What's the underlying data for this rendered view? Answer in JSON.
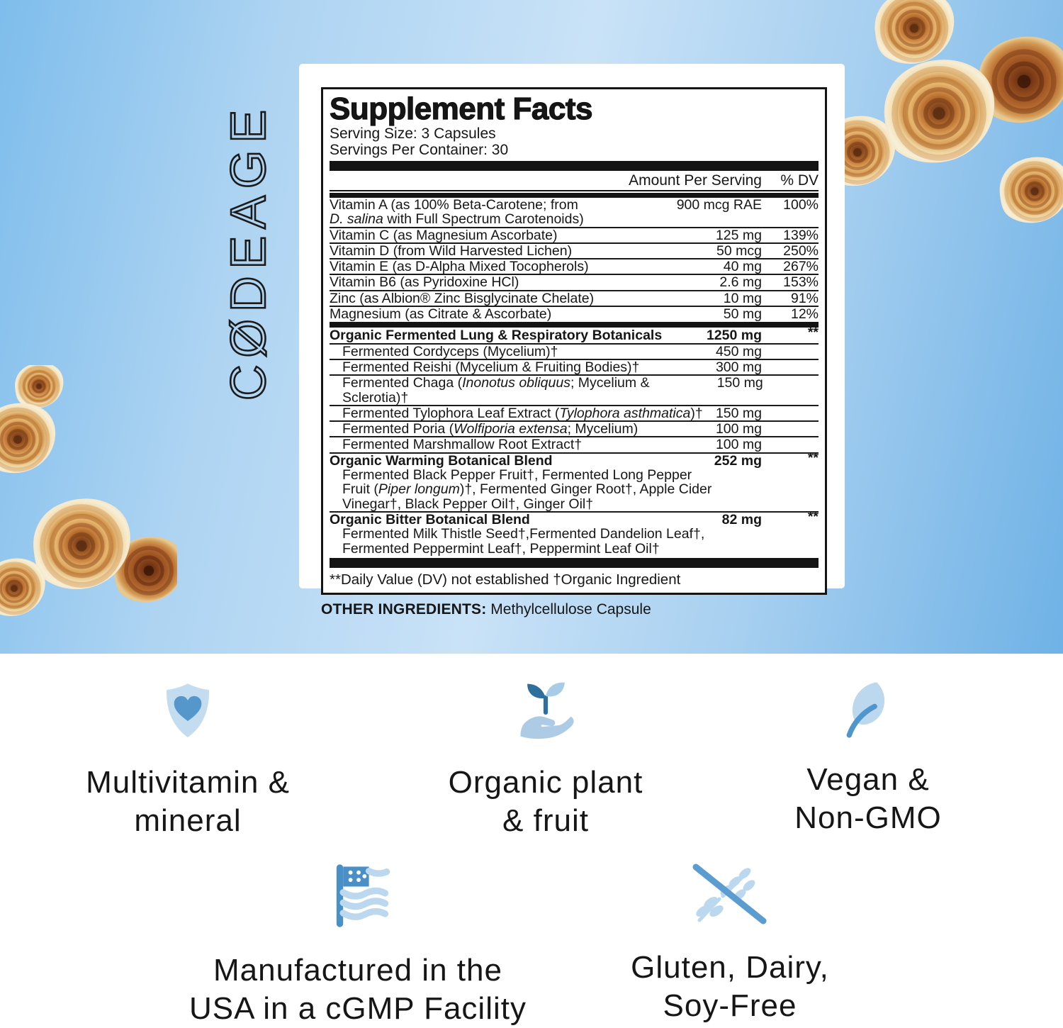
{
  "brand": {
    "logo_text": "CØDEAGE"
  },
  "supplement_facts": {
    "title": "Supplement Facts",
    "serving_size": "Serving Size: 3 Capsules",
    "servings_per_container": "Servings Per Container: 30",
    "columns": {
      "amount": "Amount Per Serving",
      "dv": "% DV"
    },
    "rows": [
      {
        "parts": [
          {
            "t": "Vitamin A (as 100% Beta-Carotene; from"
          }
        ],
        "amount": "900 mcg RAE",
        "dv": "100%"
      },
      {
        "parts": [
          {
            "t": "D. salina",
            "i": true
          },
          {
            "t": " with Full Spectrum Carotenoids)"
          }
        ],
        "rule": true
      },
      {
        "parts": [
          {
            "t": "Vitamin C (as Magnesium Ascorbate)"
          }
        ],
        "amount": "125 mg",
        "dv": "139%",
        "rule": true
      },
      {
        "parts": [
          {
            "t": "Vitamin D (from Wild Harvested Lichen)"
          }
        ],
        "amount": "50 mcg",
        "dv": "250%",
        "rule": true
      },
      {
        "parts": [
          {
            "t": "Vitamin E (as D-Alpha Mixed Tocopherols)"
          }
        ],
        "amount": "40 mg",
        "dv": "267%",
        "rule": true
      },
      {
        "parts": [
          {
            "t": "Vitamin B6 (as Pyridoxine HCl)"
          }
        ],
        "amount": "2.6 mg",
        "dv": "153%",
        "rule": true
      },
      {
        "parts": [
          {
            "t": "Zinc (as Albion® Zinc Bisglycinate Chelate)"
          }
        ],
        "amount": "10 mg",
        "dv": "91%",
        "rule": true
      },
      {
        "parts": [
          {
            "t": "Magnesium (as Citrate & Ascorbate)"
          }
        ],
        "amount": "50 mg",
        "dv": "12%",
        "bar_after": true
      },
      {
        "parts": [
          {
            "t": "Organic Fermented Lung & Respiratory Botanicals"
          }
        ],
        "amount": "1250 mg",
        "dv": "**",
        "bold": true,
        "rule": true
      },
      {
        "parts": [
          {
            "t": "Fermented Cordyceps (Mycelium)†"
          }
        ],
        "amount": "450 mg",
        "indent": 1,
        "rule": true
      },
      {
        "parts": [
          {
            "t": "Fermented Reishi (Mycelium & Fruiting Bodies)†"
          }
        ],
        "amount": "300 mg",
        "indent": 1,
        "rule": true
      },
      {
        "parts": [
          {
            "t": "Fermented Chaga ("
          },
          {
            "t": "Inonotus obliquus",
            "i": true
          },
          {
            "t": "; Mycelium & Sclerotia)†"
          }
        ],
        "amount": "150 mg",
        "indent": 1,
        "rule": true
      },
      {
        "parts": [
          {
            "t": "Fermented Tylophora Leaf Extract ("
          },
          {
            "t": "Tylophora asthmatica",
            "i": true
          },
          {
            "t": ")†"
          }
        ],
        "amount": "150 mg",
        "indent": 1,
        "rule": true
      },
      {
        "parts": [
          {
            "t": "Fermented Poria ("
          },
          {
            "t": "Wolfiporia extensa",
            "i": true
          },
          {
            "t": "; Mycelium)"
          }
        ],
        "amount": "100 mg",
        "indent": 1,
        "rule": true
      },
      {
        "parts": [
          {
            "t": "Fermented Marshmallow Root Extract†"
          }
        ],
        "amount": "100 mg",
        "indent": 1,
        "rule": true
      },
      {
        "parts": [
          {
            "t": "Organic Warming Botanical Blend"
          }
        ],
        "amount": "252 mg",
        "dv": "**",
        "bold": true
      },
      {
        "parts": [
          {
            "t": "Fermented Black Pepper Fruit†, Fermented Long Pepper"
          }
        ],
        "indent": 1
      },
      {
        "parts": [
          {
            "t": "Fruit ("
          },
          {
            "t": "Piper longum",
            "i": true
          },
          {
            "t": ")†, Fermented Ginger Root†, Apple Cider"
          }
        ],
        "indent": 1
      },
      {
        "parts": [
          {
            "t": "Vinegar†, Black Pepper Oil†, Ginger Oil†"
          }
        ],
        "indent": 1,
        "rule": true
      },
      {
        "parts": [
          {
            "t": "Organic Bitter Botanical Blend"
          }
        ],
        "amount": "82 mg",
        "dv": "**",
        "bold": true
      },
      {
        "parts": [
          {
            "t": "Fermented Milk Thistle Seed†,Fermented Dandelion Leaf†,"
          }
        ],
        "indent": 1
      },
      {
        "parts": [
          {
            "t": "Fermented Peppermint Leaf†, Peppermint Leaf Oil†"
          }
        ],
        "indent": 1
      }
    ],
    "footnote": "**Daily Value (DV) not established †Organic Ingredient",
    "other_ingredients_label": "OTHER INGREDIENTS:",
    "other_ingredients_value": "Methylcellulose Capsule"
  },
  "features": {
    "row1": [
      {
        "icon": "shield-heart-icon",
        "lines": [
          "Multivitamin &",
          "mineral"
        ]
      },
      {
        "icon": "hand-plant-icon",
        "lines": [
          "Organic plant",
          "& fruit"
        ]
      },
      {
        "icon": "leaf-icon",
        "lines": [
          "Vegan &",
          "Non-GMO"
        ]
      }
    ],
    "row2": [
      {
        "icon": "usa-flag-icon",
        "lines": [
          "Manufactured in the",
          "USA in a cGMP Facility"
        ]
      },
      {
        "icon": "no-gluten-icon",
        "lines": [
          "Gluten, Dairy,",
          "Soy-Free"
        ]
      }
    ]
  },
  "colors": {
    "background_blue_deep": "#7ebdec",
    "background_blue_light": "#c9e2f7",
    "icon_light_blue": "#bcd8ee",
    "icon_mid_blue": "#4f96cc",
    "icon_dark_blue": "#2e6f9e",
    "label_black": "#141414",
    "text_dark": "#161616",
    "mushroom_brown": "#b46a2c",
    "mushroom_cream": "#f5e7c6"
  }
}
